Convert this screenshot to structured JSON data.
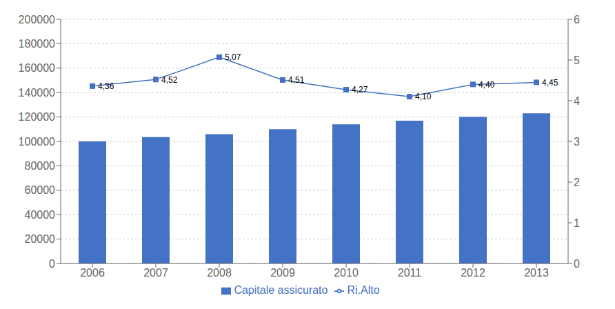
{
  "chart_data": {
    "type": "bar",
    "categories": [
      "2006",
      "2007",
      "2008",
      "2009",
      "2010",
      "2011",
      "2012",
      "2013"
    ],
    "series": [
      {
        "name": "Capitale assicurato",
        "type": "bar",
        "color": "#4472c4",
        "values": [
          100000,
          103500,
          106000,
          110000,
          114000,
          117000,
          120000,
          123000
        ]
      },
      {
        "name": "Ri.Alto",
        "type": "line",
        "axis": "y2",
        "color": "#4472c4",
        "marker": "square",
        "data_labels": true,
        "values": [
          4.36,
          4.52,
          5.07,
          4.51,
          4.27,
          4.1,
          4.4,
          4.45
        ],
        "value_labels": [
          "4,36",
          "4,52",
          "5,07",
          "4,51",
          "4,27",
          "4,10",
          "4,40",
          "4,45"
        ]
      }
    ],
    "ylim": [
      0,
      200000
    ],
    "yticks": [
      0,
      20000,
      40000,
      60000,
      80000,
      100000,
      120000,
      140000,
      160000,
      180000,
      200000
    ],
    "y2lim": [
      0,
      6
    ],
    "y2ticks": [
      0,
      1,
      2,
      3,
      4,
      5,
      6
    ],
    "grid": true,
    "legend": "bottom"
  }
}
